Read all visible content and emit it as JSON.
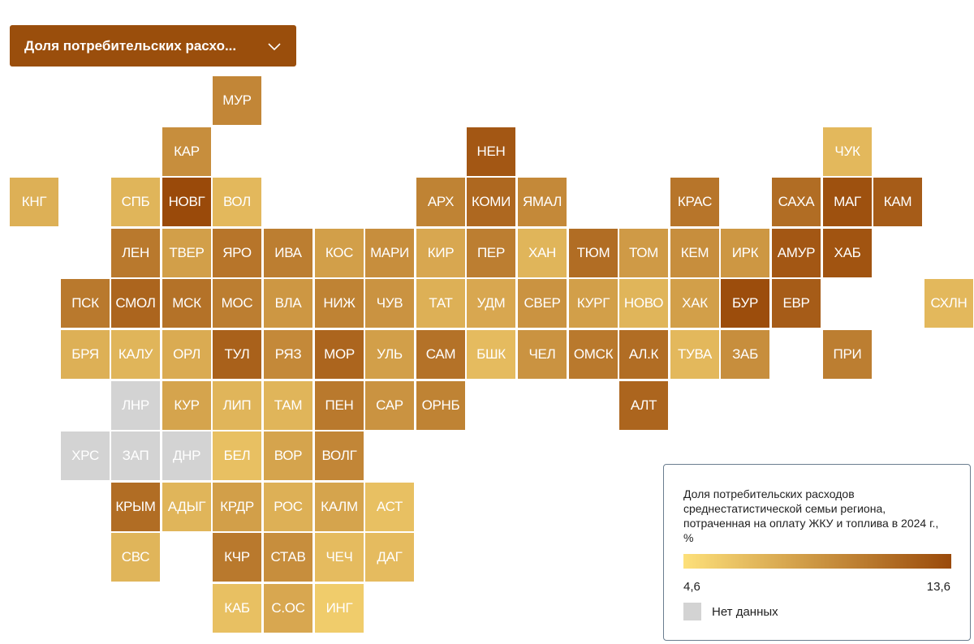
{
  "selector": {
    "label": "Доля потребительских расхо...",
    "icon": "chevron-down-icon"
  },
  "colors": {
    "selector_bg": "#9a4e0c",
    "scale_low": "#fde07a",
    "scale_high": "#9a4a0a",
    "no_data": "#d3d3d3"
  },
  "legend": {
    "title": "Доля потребительских расходов среднестатистической семьи региона, потраченная на оплату ЖКУ и топлива в 2024 г., %",
    "min_label": "4,6",
    "max_label": "13,6",
    "min": 4.6,
    "max": 13.6,
    "no_data_label": "Нет данных"
  },
  "regions": [
    {
      "label": "МУР",
      "row": 0,
      "col": 4,
      "value": 10.0
    },
    {
      "label": "КАР",
      "row": 1,
      "col": 3,
      "value": 9.5
    },
    {
      "label": "НЕН",
      "row": 1,
      "col": 9,
      "value": 12.8
    },
    {
      "label": "ЧУК",
      "row": 1,
      "col": 16,
      "value": 7.0
    },
    {
      "label": "КНГ",
      "row": 2,
      "col": 0,
      "value": 7.5
    },
    {
      "label": "СПБ",
      "row": 2,
      "col": 2,
      "value": 7.2
    },
    {
      "label": "НОВГ",
      "row": 2,
      "col": 3,
      "value": 13.6
    },
    {
      "label": "ВОЛ",
      "row": 2,
      "col": 4,
      "value": 7.0
    },
    {
      "label": "АРХ",
      "row": 2,
      "col": 8,
      "value": 10.2
    },
    {
      "label": "КОМИ",
      "row": 2,
      "col": 9,
      "value": 11.8
    },
    {
      "label": "ЯМАЛ",
      "row": 2,
      "col": 10,
      "value": 9.8
    },
    {
      "label": "КРАС",
      "row": 2,
      "col": 13,
      "value": 11.0
    },
    {
      "label": "САХА",
      "row": 2,
      "col": 15,
      "value": 11.5
    },
    {
      "label": "МАГ",
      "row": 2,
      "col": 16,
      "value": 13.2
    },
    {
      "label": "КАМ",
      "row": 2,
      "col": 17,
      "value": 12.5
    },
    {
      "label": "ЛЕН",
      "row": 3,
      "col": 2,
      "value": 10.8
    },
    {
      "label": "ТВЕР",
      "row": 3,
      "col": 3,
      "value": 8.5
    },
    {
      "label": "ЯРО",
      "row": 3,
      "col": 4,
      "value": 11.0
    },
    {
      "label": "ИВА",
      "row": 3,
      "col": 5,
      "value": 10.5
    },
    {
      "label": "КОС",
      "row": 3,
      "col": 6,
      "value": 8.5
    },
    {
      "label": "МАРИ",
      "row": 3,
      "col": 7,
      "value": 9.5
    },
    {
      "label": "КИР",
      "row": 3,
      "col": 8,
      "value": 8.0
    },
    {
      "label": "ПЕР",
      "row": 3,
      "col": 9,
      "value": 10.5
    },
    {
      "label": "ХАН",
      "row": 3,
      "col": 10,
      "value": 7.2
    },
    {
      "label": "ТЮМ",
      "row": 3,
      "col": 11,
      "value": 11.5
    },
    {
      "label": "ТОМ",
      "row": 3,
      "col": 12,
      "value": 8.8
    },
    {
      "label": "КЕМ",
      "row": 3,
      "col": 13,
      "value": 9.5
    },
    {
      "label": "ИРК",
      "row": 3,
      "col": 14,
      "value": 9.0
    },
    {
      "label": "АМУР",
      "row": 3,
      "col": 15,
      "value": 12.8
    },
    {
      "label": "ХАБ",
      "row": 3,
      "col": 16,
      "value": 13.0
    },
    {
      "label": "ПСК",
      "row": 4,
      "col": 1,
      "value": 10.8
    },
    {
      "label": "СМОЛ",
      "row": 4,
      "col": 2,
      "value": 12.0
    },
    {
      "label": "МСК",
      "row": 4,
      "col": 3,
      "value": 11.2
    },
    {
      "label": "МОС",
      "row": 4,
      "col": 4,
      "value": 10.5
    },
    {
      "label": "ВЛА",
      "row": 4,
      "col": 5,
      "value": 9.0
    },
    {
      "label": "НИЖ",
      "row": 4,
      "col": 6,
      "value": 10.2
    },
    {
      "label": "ЧУВ",
      "row": 4,
      "col": 7,
      "value": 9.2
    },
    {
      "label": "ТАТ",
      "row": 4,
      "col": 8,
      "value": 7.5
    },
    {
      "label": "УДМ",
      "row": 4,
      "col": 9,
      "value": 8.0
    },
    {
      "label": "СВЕР",
      "row": 4,
      "col": 10,
      "value": 9.2
    },
    {
      "label": "КУРГ",
      "row": 4,
      "col": 11,
      "value": 8.5
    },
    {
      "label": "НОВО",
      "row": 4,
      "col": 12,
      "value": 7.2
    },
    {
      "label": "ХАК",
      "row": 4,
      "col": 13,
      "value": 8.5
    },
    {
      "label": "БУР",
      "row": 4,
      "col": 14,
      "value": 13.4
    },
    {
      "label": "ЕВР",
      "row": 4,
      "col": 15,
      "value": 12.5
    },
    {
      "label": "СХЛН",
      "row": 4,
      "col": 18,
      "value": 7.0
    },
    {
      "label": "БРЯ",
      "row": 5,
      "col": 1,
      "value": 7.5
    },
    {
      "label": "КАЛУ",
      "row": 5,
      "col": 2,
      "value": 7.2
    },
    {
      "label": "ОРЛ",
      "row": 5,
      "col": 3,
      "value": 7.8
    },
    {
      "label": "ТУЛ",
      "row": 5,
      "col": 4,
      "value": 12.2
    },
    {
      "label": "РЯЗ",
      "row": 5,
      "col": 5,
      "value": 9.8
    },
    {
      "label": "МОР",
      "row": 5,
      "col": 6,
      "value": 12.0
    },
    {
      "label": "УЛЬ",
      "row": 5,
      "col": 7,
      "value": 8.5
    },
    {
      "label": "САМ",
      "row": 5,
      "col": 8,
      "value": 11.2
    },
    {
      "label": "БШК",
      "row": 5,
      "col": 9,
      "value": 6.8
    },
    {
      "label": "ЧЕЛ",
      "row": 5,
      "col": 10,
      "value": 9.2
    },
    {
      "label": "ОМСК",
      "row": 5,
      "col": 11,
      "value": 10.8
    },
    {
      "label": "АЛ.К",
      "row": 5,
      "col": 12,
      "value": 11.5
    },
    {
      "label": "ТУВА",
      "row": 5,
      "col": 13,
      "value": 7.0
    },
    {
      "label": "ЗАБ",
      "row": 5,
      "col": 14,
      "value": 9.5
    },
    {
      "label": "ПРИ",
      "row": 5,
      "col": 16,
      "value": 10.5
    },
    {
      "label": "ЛНР",
      "row": 6,
      "col": 2,
      "value": null
    },
    {
      "label": "КУР",
      "row": 6,
      "col": 3,
      "value": 8.2
    },
    {
      "label": "ЛИП",
      "row": 6,
      "col": 4,
      "value": 7.2
    },
    {
      "label": "ТАМ",
      "row": 6,
      "col": 5,
      "value": 7.2
    },
    {
      "label": "ПЕН",
      "row": 6,
      "col": 6,
      "value": 10.8
    },
    {
      "label": "САР",
      "row": 6,
      "col": 7,
      "value": 9.2
    },
    {
      "label": "ОРНБ",
      "row": 6,
      "col": 8,
      "value": 10.2
    },
    {
      "label": "АЛТ",
      "row": 6,
      "col": 12,
      "value": 12.0
    },
    {
      "label": "ХРС",
      "row": 7,
      "col": 1,
      "value": null
    },
    {
      "label": "ЗАП",
      "row": 7,
      "col": 2,
      "value": null
    },
    {
      "label": "ДНР",
      "row": 7,
      "col": 3,
      "value": null
    },
    {
      "label": "БЕЛ",
      "row": 7,
      "col": 4,
      "value": 6.5
    },
    {
      "label": "ВОР",
      "row": 7,
      "col": 5,
      "value": 8.2
    },
    {
      "label": "ВОЛГ",
      "row": 7,
      "col": 6,
      "value": 10.0
    },
    {
      "label": "КРЫМ",
      "row": 8,
      "col": 2,
      "value": 11.5
    },
    {
      "label": "АДЫГ",
      "row": 8,
      "col": 3,
      "value": 7.2
    },
    {
      "label": "КРДР",
      "row": 8,
      "col": 4,
      "value": 8.5
    },
    {
      "label": "РОС",
      "row": 8,
      "col": 5,
      "value": 7.5
    },
    {
      "label": "КАЛМ",
      "row": 8,
      "col": 6,
      "value": 8.2
    },
    {
      "label": "АСТ",
      "row": 8,
      "col": 7,
      "value": 6.5
    },
    {
      "label": "СВС",
      "row": 9,
      "col": 2,
      "value": 7.2
    },
    {
      "label": "КЧР",
      "row": 9,
      "col": 4,
      "value": 10.8
    },
    {
      "label": "СТАВ",
      "row": 9,
      "col": 5,
      "value": 9.5
    },
    {
      "label": "ЧЕЧ",
      "row": 9,
      "col": 6,
      "value": 6.8
    },
    {
      "label": "ДАГ",
      "row": 9,
      "col": 7,
      "value": 6.8
    },
    {
      "label": "КАБ",
      "row": 10,
      "col": 4,
      "value": 6.5
    },
    {
      "label": "С.ОС",
      "row": 10,
      "col": 5,
      "value": 8.0
    },
    {
      "label": "ИНГ",
      "row": 10,
      "col": 6,
      "value": 5.8
    }
  ]
}
